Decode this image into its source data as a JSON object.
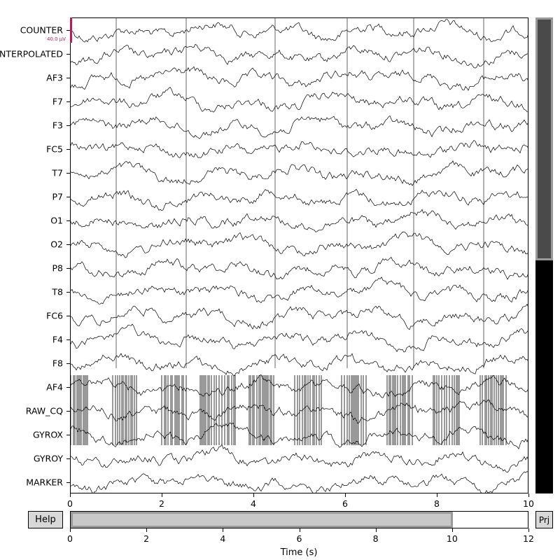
{
  "channels": [
    "COUNTER",
    "INTERPOLATED",
    "AF3",
    "F7",
    "F3",
    "FC5",
    "T7",
    "P7",
    "O1",
    "O2",
    "P8",
    "T8",
    "FC6",
    "F4",
    "F8",
    "AF4",
    "RAW_CQ",
    "GYROX",
    "GYROY",
    "MARKER"
  ],
  "scale_label": "40.0 µV",
  "scale_color": "#c2185b",
  "trace_color": "#000000",
  "time_axis": {
    "ticks": [
      "0",
      "2",
      "4",
      "6",
      "8",
      "10"
    ],
    "range": [
      0,
      10
    ]
  },
  "scroll_axis": {
    "ticks": [
      "0",
      "2",
      "4",
      "6",
      "8",
      "10",
      "12"
    ],
    "range": [
      0,
      12
    ],
    "xlabel": "Time (s)"
  },
  "view_window": [
    0,
    10
  ],
  "channel_scroll_fraction": 0.51,
  "buttons": {
    "help": "Help",
    "projector": "Prj"
  },
  "colors": {
    "scrollbar_track": "#000000",
    "scrollbar_thumb": "#4a4a4a",
    "time_thumb": "#c8c8c8",
    "thumb_border": "#9a9a9a"
  }
}
